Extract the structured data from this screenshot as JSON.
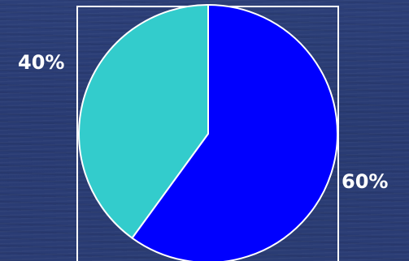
{
  "chart_data": {
    "type": "pie",
    "slices": [
      {
        "label": "60%",
        "value": 60,
        "color": "#0000ff"
      },
      {
        "label": "40%",
        "value": 40,
        "color": "#33cccc"
      }
    ],
    "title": "",
    "legend": "none",
    "frame_color": "#ffffff"
  }
}
